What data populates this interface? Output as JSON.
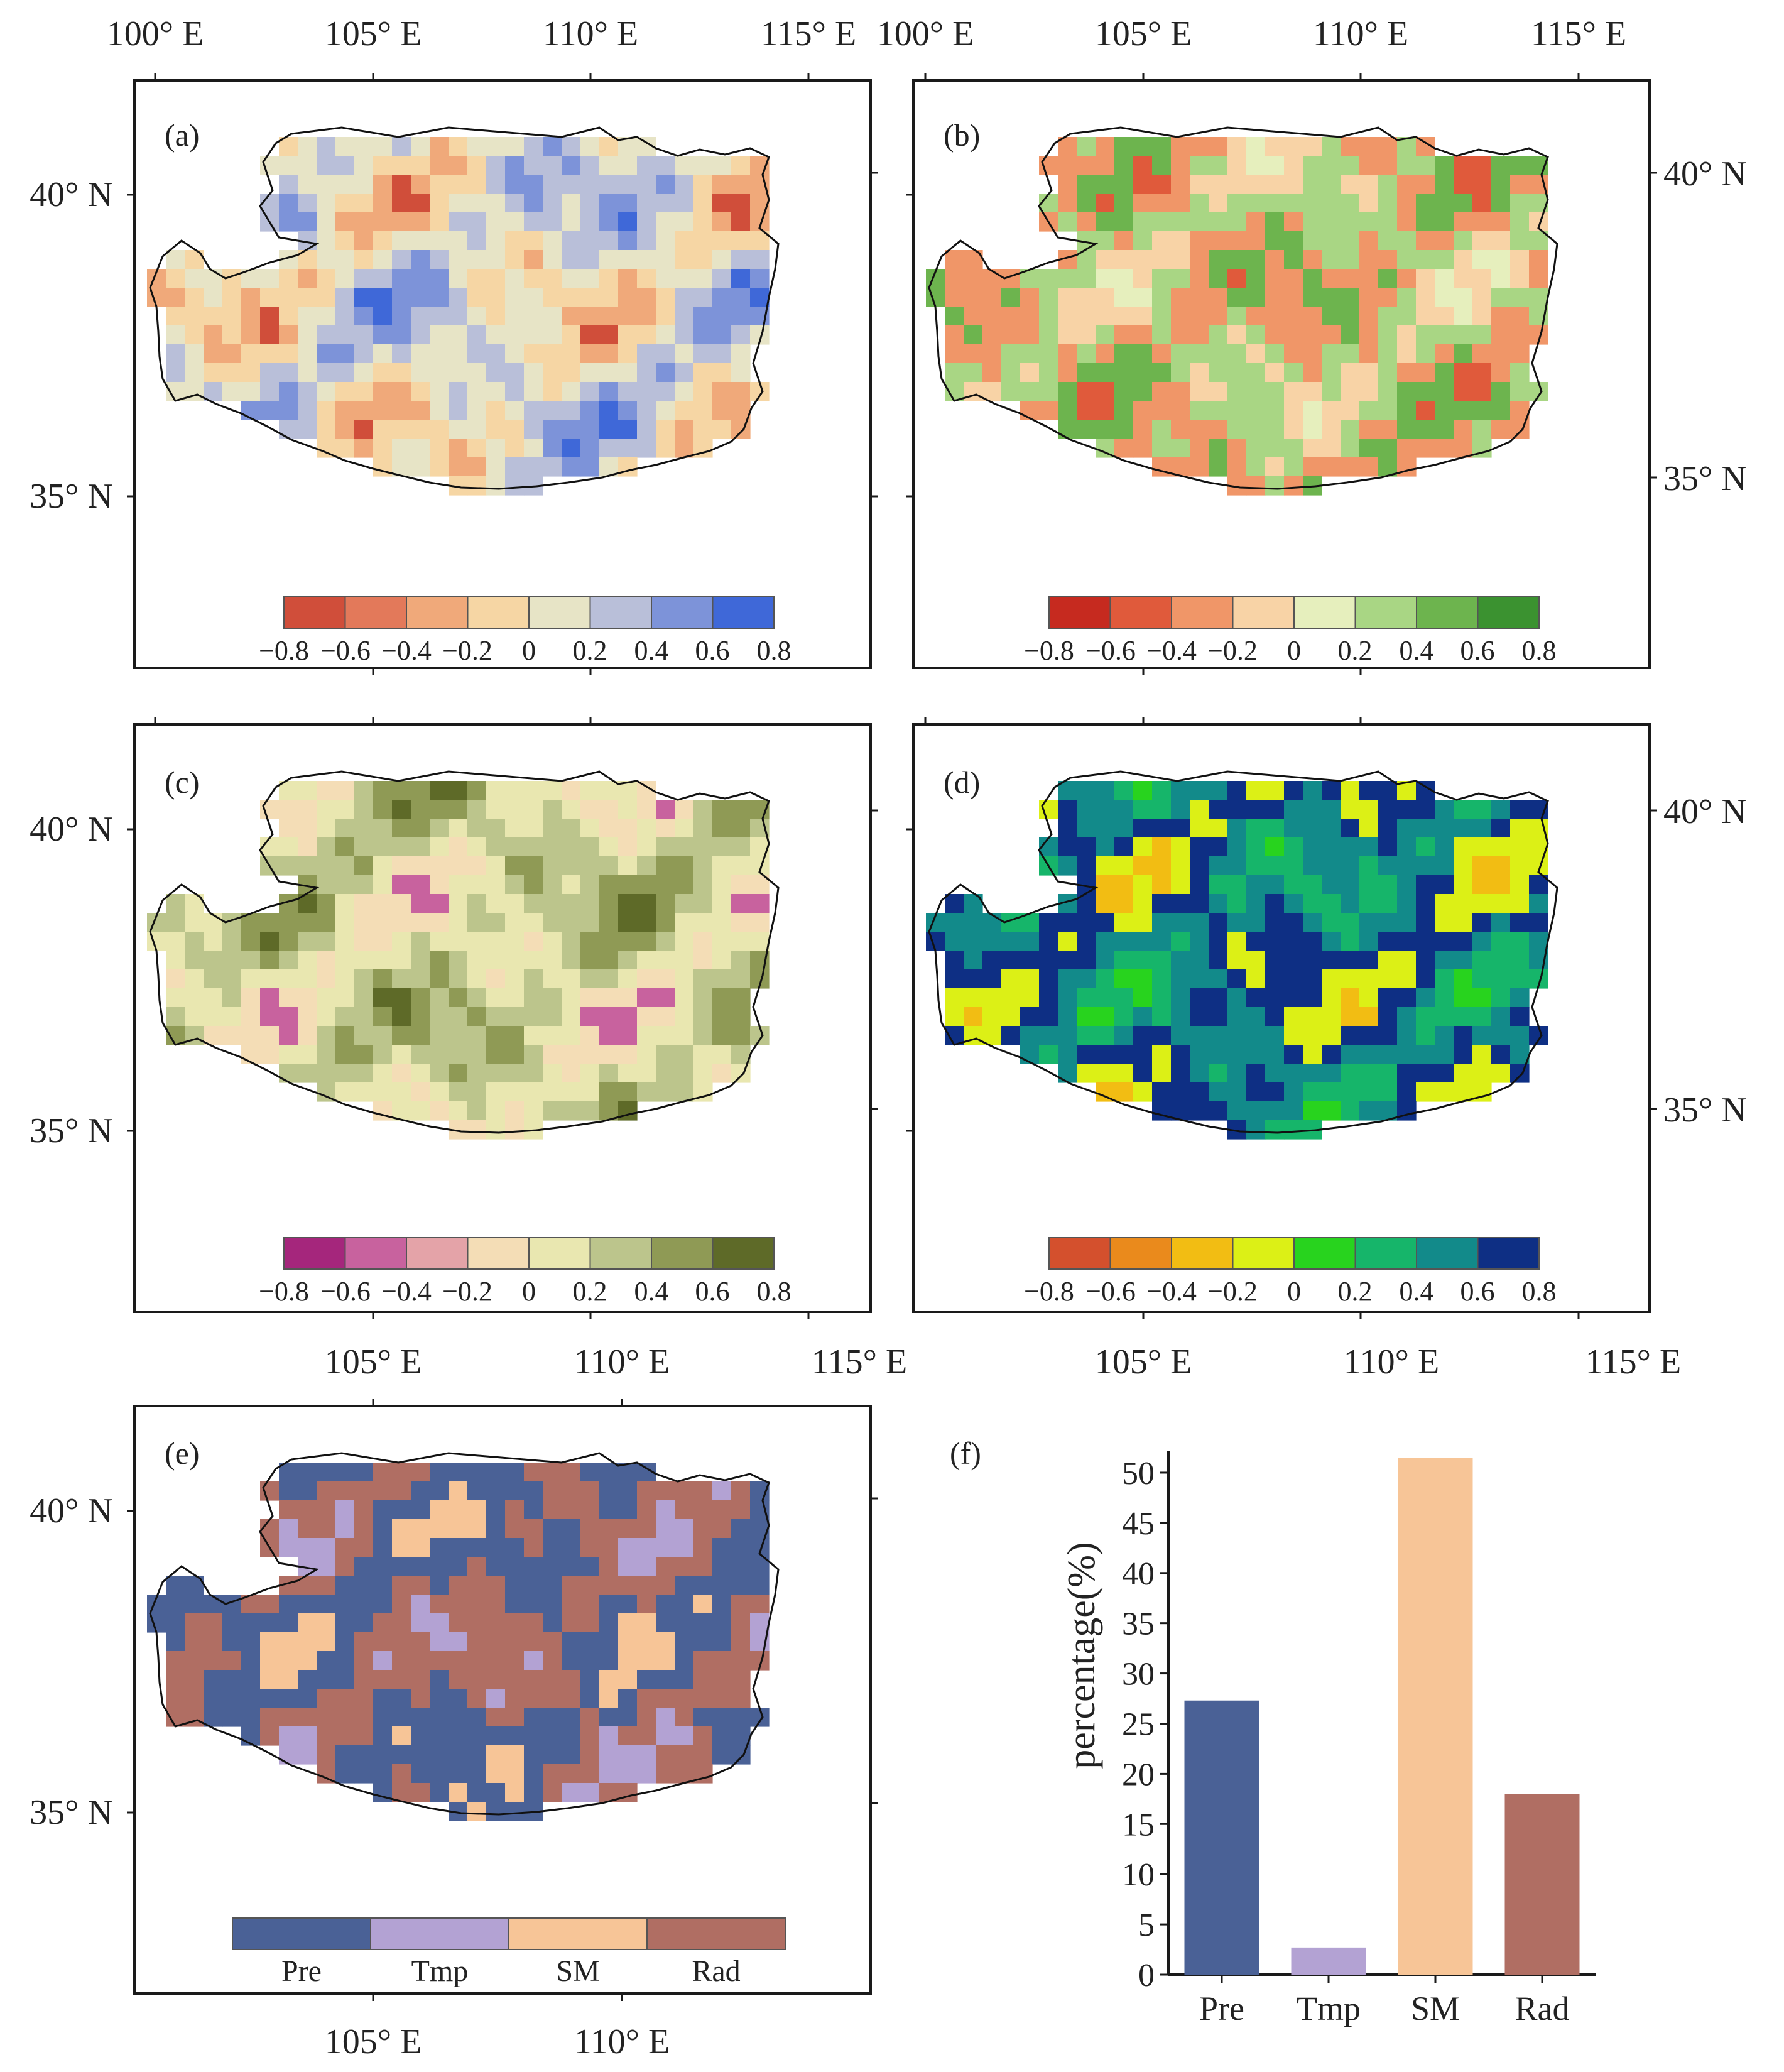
{
  "figure": {
    "colors": {
      "frame": "#1a1a1a",
      "outline": "#111111"
    },
    "colorbar_ticks": [
      "−0.8",
      "−0.6",
      "−0.4",
      "−0.2",
      "0",
      "0.2",
      "0.4",
      "0.6",
      "0.8"
    ],
    "category_labels": [
      "Pre",
      "Tmp",
      "SM",
      "Rad"
    ],
    "category_colors": [
      "#4a6196",
      "#b3a2d3",
      "#f7c597",
      "#b06e63"
    ]
  },
  "panels": [
    {
      "label": "(a)",
      "top_lon_ticks": [
        "100° E",
        "105° E",
        "110° E",
        "115° E"
      ],
      "bottom_lon_ticks": [],
      "left_lat_ticks": [
        "40° N",
        "35° N"
      ],
      "right_lat_ticks": [],
      "palette": [
        "#d04e3a",
        "#e3795a",
        "#f0a97a",
        "#f6d6a4",
        "#e7e4c6",
        "#b9bfd9",
        "#7d93d9",
        "#3f68d8"
      ],
      "map_colors": [
        "#3f68d8",
        "#7d93d9",
        "#b9bfd9",
        "#e7e4c6",
        "#f6d6a4",
        "#f0a97a",
        "#d04e3a"
      ]
    },
    {
      "label": "(b)",
      "top_lon_ticks": [
        "100° E",
        "105° E",
        "110° E",
        "115° E"
      ],
      "bottom_lon_ticks": [],
      "left_lat_ticks": [],
      "right_lat_ticks": [
        "40° N",
        "35° N"
      ],
      "palette": [
        "#c62a1f",
        "#e05a3b",
        "#f09668",
        "#f8d3a6",
        "#e6efbd",
        "#a9d684",
        "#6db44e",
        "#3b9230"
      ],
      "map_colors": [
        "#e6efbd",
        "#f8d3a6",
        "#a9d684",
        "#f09668",
        "#6db44e",
        "#e05a3b"
      ]
    },
    {
      "label": "(c)",
      "top_lon_ticks": [],
      "bottom_lon_ticks": [
        "105° E",
        "110° E",
        "115° E"
      ],
      "left_lat_ticks": [
        "40° N",
        "35° N"
      ],
      "right_lat_ticks": [],
      "palette": [
        "#a5267c",
        "#c8629e",
        "#e4a3a8",
        "#f4ddb6",
        "#e9e7b0",
        "#bcc58c",
        "#8f9a55",
        "#5e6a28"
      ],
      "map_colors": [
        "#5e6a28",
        "#8f9a55",
        "#bcc58c",
        "#e9e7b0",
        "#f4ddb6",
        "#c8629e"
      ]
    },
    {
      "label": "(d)",
      "top_lon_ticks": [],
      "bottom_lon_ticks": [
        "105° E",
        "110° E",
        "115° E"
      ],
      "left_lat_ticks": [],
      "right_lat_ticks": [
        "40° N",
        "35° N"
      ],
      "palette": [
        "#d4502d",
        "#ea8a1c",
        "#f2bd13",
        "#dcf016",
        "#28d31e",
        "#16b56a",
        "#128a8a",
        "#0e2f84"
      ],
      "map_colors": [
        "#28d31e",
        "#16b56a",
        "#128a8a",
        "#0e2f84",
        "#dcf016",
        "#f2bd13"
      ]
    },
    {
      "label": "(e)",
      "top_lon_ticks": [],
      "bottom_lon_ticks": [
        "105° E",
        "110° E"
      ],
      "left_lat_ticks": [
        "40° N",
        "35° N"
      ],
      "right_lat_ticks": [],
      "palette": [
        "#4a6196",
        "#b3a2d3",
        "#f7c597",
        "#b06e63"
      ],
      "map_colors": [
        "#f7c597",
        "#4a6196",
        "#b06e63",
        "#b3a2d3"
      ]
    }
  ],
  "chart_data": {
    "type": "bar",
    "label": "(f)",
    "categories": [
      "Pre",
      "Tmp",
      "SM",
      "Rad"
    ],
    "values": [
      27.3,
      2.7,
      51.5,
      18.0
    ],
    "colors": [
      "#4a6196",
      "#b3a2d3",
      "#f7c597",
      "#b06e63"
    ],
    "title": "",
    "xlabel": "",
    "ylabel": "percentage(%)",
    "ylim": [
      0,
      51.5
    ],
    "yticks": [
      0,
      5,
      10,
      15,
      20,
      25,
      30,
      35,
      40,
      45,
      50
    ]
  }
}
